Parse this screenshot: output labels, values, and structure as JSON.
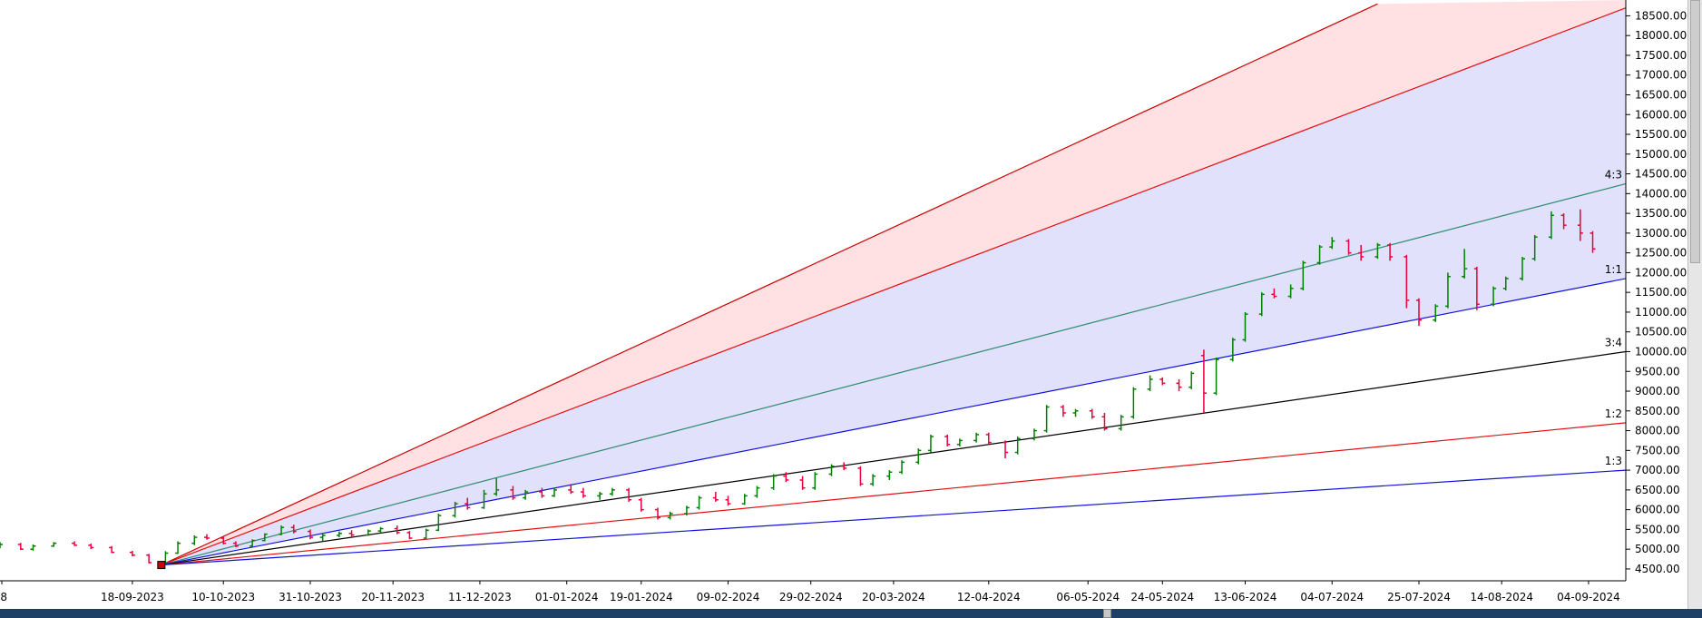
{
  "chart_data": {
    "type": "candlestick",
    "title": "",
    "xlabel": "",
    "ylabel": "",
    "grid": false,
    "ylim": [
      4200,
      18800
    ],
    "y_ticks": [
      "4500.00",
      "5000.00",
      "5500.00",
      "6000.00",
      "6500.00",
      "7000.00",
      "7500.00",
      "8000.00",
      "8500.00",
      "9000.00",
      "9500.00",
      "10000.00",
      "10500.00",
      "11000.00",
      "11500.00",
      "12000.00",
      "12500.00",
      "13000.00",
      "13500.00",
      "14000.00",
      "14500.00",
      "15000.00",
      "15500.00",
      "16000.00",
      "16500.00",
      "17000.00",
      "17500.00",
      "18000.00",
      "18500.00"
    ],
    "x_ticks": [
      "8",
      "18-09-2023",
      "10-10-2023",
      "31-10-2023",
      "20-11-2023",
      "11-12-2023",
      "01-01-2024",
      "19-01-2024",
      "09-02-2024",
      "29-02-2024",
      "20-03-2024",
      "12-04-2024",
      "06-05-2024",
      "24-05-2024",
      "13-06-2024",
      "04-07-2024",
      "25-07-2024",
      "14-08-2024",
      "04-09-2024"
    ],
    "x_start": "2023-08-17",
    "x_end": "2024-09-13",
    "fan": {
      "origin_date": "2023-09-25",
      "origin_value": 4600,
      "shade_colors": {
        "upper": "#ffe0e3",
        "lower": "#e1e1fb"
      },
      "lines": [
        {
          "label": "",
          "color": "#cc0000",
          "end_date": "2024-07-15",
          "end_value": 18800
        },
        {
          "label": "",
          "color": "#e01010",
          "end_date": "2024-09-13",
          "end_value": 18700
        },
        {
          "label": "4:3",
          "color": "#2e8b6e",
          "end_date": "2024-09-13",
          "end_value": 14250
        },
        {
          "label": "1:1",
          "color": "#1010dd",
          "end_date": "2024-09-13",
          "end_value": 11850
        },
        {
          "label": "3:4",
          "color": "#000000",
          "end_date": "2024-09-13",
          "end_value": 10000
        },
        {
          "label": "1:2",
          "color": "#e01010",
          "end_date": "2024-09-13",
          "end_value": 8200
        },
        {
          "label": "1:3",
          "color": "#1010dd",
          "end_date": "2024-09-13",
          "end_value": 7000
        }
      ]
    },
    "up_color": "#008000",
    "down_color": "#e8003c",
    "series": [
      {
        "date": "2023-08-17",
        "open": 5100,
        "high": 5180,
        "low": 5020,
        "close": 5120
      },
      {
        "date": "2023-08-22",
        "open": 5120,
        "high": 5160,
        "low": 4980,
        "close": 5000
      },
      {
        "date": "2023-08-25",
        "open": 5000,
        "high": 5120,
        "low": 4960,
        "close": 5080
      },
      {
        "date": "2023-08-30",
        "open": 5080,
        "high": 5180,
        "low": 5060,
        "close": 5150
      },
      {
        "date": "2023-09-04",
        "open": 5150,
        "high": 5200,
        "low": 5080,
        "close": 5100
      },
      {
        "date": "2023-09-08",
        "open": 5100,
        "high": 5140,
        "low": 5000,
        "close": 5040
      },
      {
        "date": "2023-09-13",
        "open": 5040,
        "high": 5080,
        "low": 4900,
        "close": 4920
      },
      {
        "date": "2023-09-18",
        "open": 4920,
        "high": 4960,
        "low": 4820,
        "close": 4850
      },
      {
        "date": "2023-09-22",
        "open": 4850,
        "high": 4880,
        "low": 4640,
        "close": 4660
      },
      {
        "date": "2023-09-26",
        "open": 4660,
        "high": 4950,
        "low": 4620,
        "close": 4900
      },
      {
        "date": "2023-09-29",
        "open": 4900,
        "high": 5200,
        "low": 4880,
        "close": 5150
      },
      {
        "date": "2023-10-03",
        "open": 5150,
        "high": 5350,
        "low": 5100,
        "close": 5300
      },
      {
        "date": "2023-10-06",
        "open": 5300,
        "high": 5380,
        "low": 5240,
        "close": 5280
      },
      {
        "date": "2023-10-10",
        "open": 5280,
        "high": 5320,
        "low": 5120,
        "close": 5150
      },
      {
        "date": "2023-10-13",
        "open": 5150,
        "high": 5200,
        "low": 5050,
        "close": 5080
      },
      {
        "date": "2023-10-17",
        "open": 5080,
        "high": 5250,
        "low": 5060,
        "close": 5220
      },
      {
        "date": "2023-10-20",
        "open": 5220,
        "high": 5400,
        "low": 5200,
        "close": 5380
      },
      {
        "date": "2023-10-24",
        "open": 5380,
        "high": 5600,
        "low": 5350,
        "close": 5550
      },
      {
        "date": "2023-10-27",
        "open": 5550,
        "high": 5620,
        "low": 5400,
        "close": 5450
      },
      {
        "date": "2023-10-31",
        "open": 5450,
        "high": 5500,
        "low": 5250,
        "close": 5300
      },
      {
        "date": "2023-11-03",
        "open": 5300,
        "high": 5400,
        "low": 5200,
        "close": 5350
      },
      {
        "date": "2023-11-07",
        "open": 5350,
        "high": 5450,
        "low": 5300,
        "close": 5400
      },
      {
        "date": "2023-11-10",
        "open": 5400,
        "high": 5480,
        "low": 5320,
        "close": 5360
      },
      {
        "date": "2023-11-14",
        "open": 5360,
        "high": 5500,
        "low": 5340,
        "close": 5460
      },
      {
        "date": "2023-11-17",
        "open": 5460,
        "high": 5560,
        "low": 5420,
        "close": 5520
      },
      {
        "date": "2023-11-21",
        "open": 5520,
        "high": 5600,
        "low": 5380,
        "close": 5420
      },
      {
        "date": "2023-11-24",
        "open": 5420,
        "high": 5460,
        "low": 5250,
        "close": 5280
      },
      {
        "date": "2023-11-28",
        "open": 5280,
        "high": 5520,
        "low": 5260,
        "close": 5480
      },
      {
        "date": "2023-12-01",
        "open": 5480,
        "high": 5900,
        "low": 5460,
        "close": 5850
      },
      {
        "date": "2023-12-05",
        "open": 5850,
        "high": 6200,
        "low": 5800,
        "close": 6150
      },
      {
        "date": "2023-12-08",
        "open": 6150,
        "high": 6300,
        "low": 6000,
        "close": 6050
      },
      {
        "date": "2023-12-12",
        "open": 6050,
        "high": 6500,
        "low": 6020,
        "close": 6400
      },
      {
        "date": "2023-12-15",
        "open": 6400,
        "high": 6800,
        "low": 6350,
        "close": 6500
      },
      {
        "date": "2023-12-19",
        "open": 6500,
        "high": 6600,
        "low": 6250,
        "close": 6300
      },
      {
        "date": "2023-12-22",
        "open": 6300,
        "high": 6500,
        "low": 6250,
        "close": 6450
      },
      {
        "date": "2023-12-26",
        "open": 6450,
        "high": 6550,
        "low": 6300,
        "close": 6350
      },
      {
        "date": "2023-12-29",
        "open": 6350,
        "high": 6550,
        "low": 6320,
        "close": 6500
      },
      {
        "date": "2024-01-02",
        "open": 6500,
        "high": 6650,
        "low": 6400,
        "close": 6450
      },
      {
        "date": "2024-01-05",
        "open": 6450,
        "high": 6550,
        "low": 6300,
        "close": 6350
      },
      {
        "date": "2024-01-09",
        "open": 6350,
        "high": 6450,
        "low": 6250,
        "close": 6400
      },
      {
        "date": "2024-01-12",
        "open": 6400,
        "high": 6550,
        "low": 6350,
        "close": 6500
      },
      {
        "date": "2024-01-16",
        "open": 6500,
        "high": 6550,
        "low": 6200,
        "close": 6250
      },
      {
        "date": "2024-01-19",
        "open": 6250,
        "high": 6300,
        "low": 5950,
        "close": 6000
      },
      {
        "date": "2024-01-23",
        "open": 6000,
        "high": 6050,
        "low": 5750,
        "close": 5800
      },
      {
        "date": "2024-01-26",
        "open": 5800,
        "high": 5950,
        "low": 5750,
        "close": 5900
      },
      {
        "date": "2024-01-30",
        "open": 5900,
        "high": 6100,
        "low": 5850,
        "close": 6050
      },
      {
        "date": "2024-02-02",
        "open": 6050,
        "high": 6350,
        "low": 6000,
        "close": 6300
      },
      {
        "date": "2024-02-06",
        "open": 6300,
        "high": 6450,
        "low": 6200,
        "close": 6250
      },
      {
        "date": "2024-02-09",
        "open": 6250,
        "high": 6350,
        "low": 6100,
        "close": 6150
      },
      {
        "date": "2024-02-13",
        "open": 6150,
        "high": 6400,
        "low": 6120,
        "close": 6350
      },
      {
        "date": "2024-02-16",
        "open": 6350,
        "high": 6600,
        "low": 6300,
        "close": 6550
      },
      {
        "date": "2024-02-20",
        "open": 6550,
        "high": 6900,
        "low": 6500,
        "close": 6850
      },
      {
        "date": "2024-02-23",
        "open": 6850,
        "high": 6950,
        "low": 6700,
        "close": 6750
      },
      {
        "date": "2024-02-27",
        "open": 6750,
        "high": 6850,
        "low": 6500,
        "close": 6550
      },
      {
        "date": "2024-03-01",
        "open": 6550,
        "high": 6950,
        "low": 6500,
        "close": 6900
      },
      {
        "date": "2024-03-05",
        "open": 6900,
        "high": 7150,
        "low": 6850,
        "close": 7100
      },
      {
        "date": "2024-03-08",
        "open": 7100,
        "high": 7200,
        "low": 7000,
        "close": 7050
      },
      {
        "date": "2024-03-12",
        "open": 7050,
        "high": 7100,
        "low": 6600,
        "close": 6650
      },
      {
        "date": "2024-03-15",
        "open": 6650,
        "high": 6900,
        "low": 6600,
        "close": 6850
      },
      {
        "date": "2024-03-19",
        "open": 6850,
        "high": 7000,
        "low": 6750,
        "close": 6950
      },
      {
        "date": "2024-03-22",
        "open": 6950,
        "high": 7250,
        "low": 6900,
        "close": 7200
      },
      {
        "date": "2024-03-26",
        "open": 7200,
        "high": 7550,
        "low": 7150,
        "close": 7500
      },
      {
        "date": "2024-03-29",
        "open": 7500,
        "high": 7900,
        "low": 7450,
        "close": 7850
      },
      {
        "date": "2024-04-02",
        "open": 7850,
        "high": 7900,
        "low": 7600,
        "close": 7650
      },
      {
        "date": "2024-04-05",
        "open": 7650,
        "high": 7800,
        "low": 7600,
        "close": 7750
      },
      {
        "date": "2024-04-09",
        "open": 7750,
        "high": 7950,
        "low": 7700,
        "close": 7900
      },
      {
        "date": "2024-04-12",
        "open": 7900,
        "high": 7950,
        "low": 7650,
        "close": 7700
      },
      {
        "date": "2024-04-16",
        "open": 7700,
        "high": 7750,
        "low": 7300,
        "close": 7450
      },
      {
        "date": "2024-04-19",
        "open": 7450,
        "high": 7850,
        "low": 7400,
        "close": 7800
      },
      {
        "date": "2024-04-23",
        "open": 7800,
        "high": 8050,
        "low": 7750,
        "close": 8000
      },
      {
        "date": "2024-04-26",
        "open": 8000,
        "high": 8650,
        "low": 7950,
        "close": 8600
      },
      {
        "date": "2024-04-30",
        "open": 8600,
        "high": 8650,
        "low": 8350,
        "close": 8450
      },
      {
        "date": "2024-05-03",
        "open": 8450,
        "high": 8550,
        "low": 8350,
        "close": 8500
      },
      {
        "date": "2024-05-07",
        "open": 8500,
        "high": 8550,
        "low": 8300,
        "close": 8350
      },
      {
        "date": "2024-05-10",
        "open": 8350,
        "high": 8450,
        "low": 8000,
        "close": 8050
      },
      {
        "date": "2024-05-14",
        "open": 8050,
        "high": 8400,
        "low": 8000,
        "close": 8350
      },
      {
        "date": "2024-05-17",
        "open": 8350,
        "high": 9100,
        "low": 8300,
        "close": 9050
      },
      {
        "date": "2024-05-21",
        "open": 9050,
        "high": 9400,
        "low": 9000,
        "close": 9300
      },
      {
        "date": "2024-05-24",
        "open": 9300,
        "high": 9350,
        "low": 9150,
        "close": 9200
      },
      {
        "date": "2024-05-28",
        "open": 9200,
        "high": 9300,
        "low": 9000,
        "close": 9100
      },
      {
        "date": "2024-05-31",
        "open": 9100,
        "high": 9500,
        "low": 9050,
        "close": 9450
      },
      {
        "date": "2024-06-03",
        "open": 9900,
        "high": 10050,
        "low": 8450,
        "close": 8950
      },
      {
        "date": "2024-06-06",
        "open": 8950,
        "high": 9850,
        "low": 8900,
        "close": 9800
      },
      {
        "date": "2024-06-10",
        "open": 9800,
        "high": 10350,
        "low": 9750,
        "close": 10300
      },
      {
        "date": "2024-06-13",
        "open": 10300,
        "high": 11000,
        "low": 10250,
        "close": 10950
      },
      {
        "date": "2024-06-17",
        "open": 10950,
        "high": 11500,
        "low": 10900,
        "close": 11450
      },
      {
        "date": "2024-06-20",
        "open": 11450,
        "high": 11600,
        "low": 11350,
        "close": 11400
      },
      {
        "date": "2024-06-24",
        "open": 11400,
        "high": 11700,
        "low": 11350,
        "close": 11600
      },
      {
        "date": "2024-06-27",
        "open": 11600,
        "high": 12300,
        "low": 11550,
        "close": 12250
      },
      {
        "date": "2024-07-01",
        "open": 12250,
        "high": 12700,
        "low": 12200,
        "close": 12650
      },
      {
        "date": "2024-07-04",
        "open": 12650,
        "high": 12900,
        "low": 12600,
        "close": 12800
      },
      {
        "date": "2024-07-08",
        "open": 12800,
        "high": 12850,
        "low": 12450,
        "close": 12500
      },
      {
        "date": "2024-07-11",
        "open": 12500,
        "high": 12700,
        "low": 12300,
        "close": 12400
      },
      {
        "date": "2024-07-15",
        "open": 12400,
        "high": 12750,
        "low": 12350,
        "close": 12700
      },
      {
        "date": "2024-07-18",
        "open": 12700,
        "high": 12750,
        "low": 12300,
        "close": 12400
      },
      {
        "date": "2024-07-22",
        "open": 12400,
        "high": 12450,
        "low": 11100,
        "close": 11300
      },
      {
        "date": "2024-07-25",
        "open": 11300,
        "high": 11350,
        "low": 10650,
        "close": 10800
      },
      {
        "date": "2024-07-29",
        "open": 10800,
        "high": 11200,
        "low": 10750,
        "close": 11150
      },
      {
        "date": "2024-08-01",
        "open": 11150,
        "high": 12000,
        "low": 11100,
        "close": 11900
      },
      {
        "date": "2024-08-05",
        "open": 11900,
        "high": 12600,
        "low": 11850,
        "close": 12100
      },
      {
        "date": "2024-08-08",
        "open": 12100,
        "high": 12150,
        "low": 11050,
        "close": 11200
      },
      {
        "date": "2024-08-12",
        "open": 11200,
        "high": 11650,
        "low": 11150,
        "close": 11600
      },
      {
        "date": "2024-08-15",
        "open": 11600,
        "high": 11900,
        "low": 11550,
        "close": 11850
      },
      {
        "date": "2024-08-19",
        "open": 11850,
        "high": 12400,
        "low": 11800,
        "close": 12350
      },
      {
        "date": "2024-08-22",
        "open": 12350,
        "high": 12950,
        "low": 12300,
        "close": 12900
      },
      {
        "date": "2024-08-26",
        "open": 12900,
        "high": 13550,
        "low": 12850,
        "close": 13450
      },
      {
        "date": "2024-08-29",
        "open": 13450,
        "high": 13500,
        "low": 13100,
        "close": 13200
      },
      {
        "date": "2024-09-02",
        "open": 13200,
        "high": 13600,
        "low": 12800,
        "close": 13000
      },
      {
        "date": "2024-09-05",
        "open": 13000,
        "high": 13050,
        "low": 12500,
        "close": 12600
      }
    ]
  },
  "scrollbars": {
    "vertical_thumb": "vertical scrollbar thumb",
    "horizontal_thumb": "horizontal scrollbar thumb"
  }
}
